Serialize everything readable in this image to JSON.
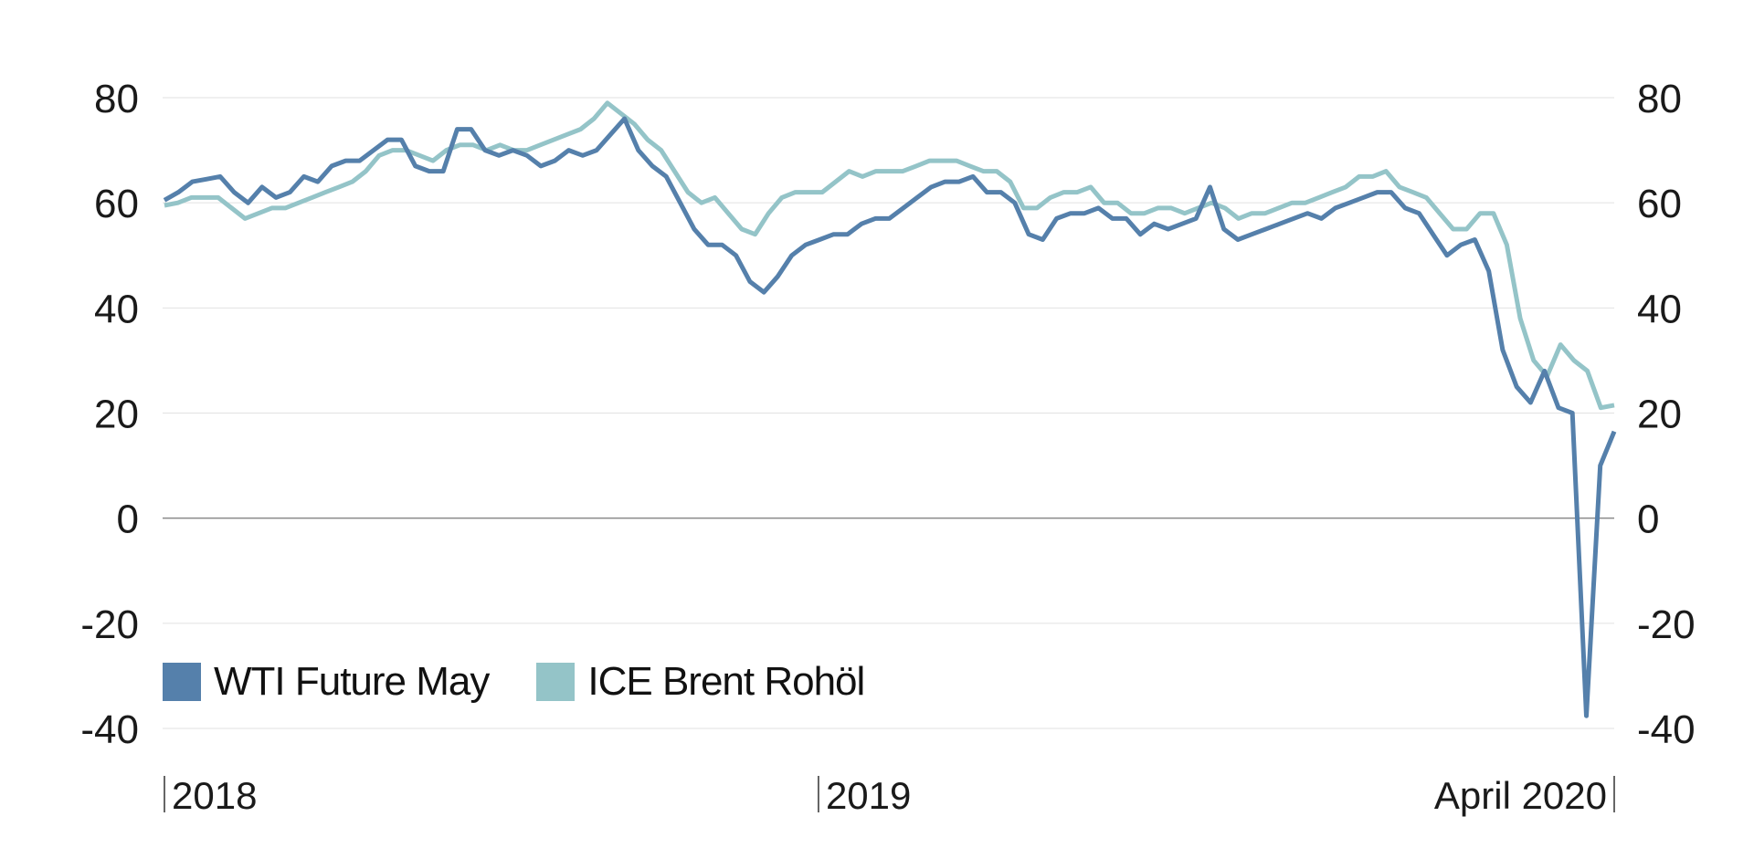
{
  "chart_data": {
    "type": "line",
    "title": "",
    "xlabel": "",
    "ylabel": "",
    "ylim": [
      -40,
      80
    ],
    "yticks": [
      80,
      60,
      40,
      20,
      0,
      -20,
      -40
    ],
    "xlim_months_since_jan_2018": [
      0,
      26.6
    ],
    "xticks": [
      {
        "label": "2018",
        "month": 0
      },
      {
        "label": "2019",
        "month": 12
      },
      {
        "label": "April 2020",
        "month": 26.6
      }
    ],
    "grid": true,
    "legend_position": "bottom-left",
    "series": [
      {
        "name": "WTI Future May",
        "color": "#5580ab",
        "values": [
          60.5,
          62,
          64,
          64.5,
          65,
          62,
          60,
          63,
          61,
          62,
          65,
          64,
          67,
          68,
          68,
          70,
          72,
          72,
          67,
          66,
          66,
          74,
          74,
          70,
          69,
          70,
          69,
          67,
          68,
          70,
          69,
          70,
          73,
          76,
          70,
          67,
          65,
          60,
          55,
          52,
          52,
          50,
          45,
          43,
          46,
          50,
          52,
          53,
          54,
          54,
          56,
          57,
          57,
          59,
          61,
          63,
          64,
          64,
          65,
          62,
          62,
          60,
          54,
          53,
          57,
          58,
          58,
          59,
          57,
          57,
          54,
          56,
          55,
          56,
          57,
          63,
          55,
          53,
          54,
          55,
          56,
          57,
          58,
          57,
          59,
          60,
          61,
          62,
          62,
          59,
          58,
          54,
          50,
          52,
          53,
          47,
          32,
          25,
          22,
          28,
          21,
          20,
          -37.6,
          10,
          16.5
        ]
      },
      {
        "name": "ICE Brent Rohöl",
        "color": "#94c4c8",
        "values": [
          59.5,
          60,
          61,
          61,
          61,
          59,
          57,
          58,
          59,
          59,
          60,
          61,
          62,
          63,
          64,
          66,
          69,
          70,
          70,
          69,
          68,
          70,
          71,
          71,
          70,
          71,
          70,
          70,
          71,
          72,
          73,
          74,
          76,
          79,
          77,
          75,
          72,
          70,
          66,
          62,
          60,
          61,
          58,
          55,
          54,
          58,
          61,
          62,
          62,
          62,
          64,
          66,
          65,
          66,
          66,
          66,
          67,
          68,
          68,
          68,
          67,
          66,
          66,
          64,
          59,
          59,
          61,
          62,
          62,
          63,
          60,
          60,
          58,
          58,
          59,
          59,
          58,
          59,
          60,
          59,
          57,
          58,
          58,
          59,
          60,
          60,
          61,
          62,
          63,
          65,
          65,
          66,
          63,
          62,
          61,
          58,
          55,
          55,
          58,
          58,
          52,
          38,
          30,
          27,
          33,
          30,
          28,
          21,
          21.5
        ]
      }
    ]
  }
}
